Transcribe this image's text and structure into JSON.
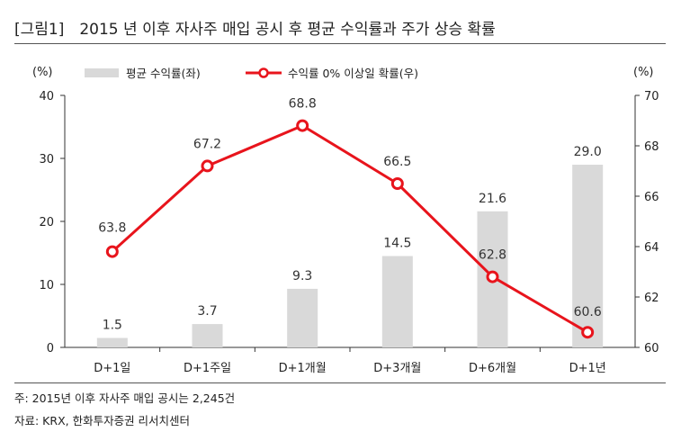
{
  "title": "[그림1]　2015 년 이후 자사주 매입 공시 후 평균 수익률과 주가 상승 확률",
  "footnote": "주: 2015년 이후 자사주 매입 공시는 2,245건",
  "source": "자료: KRX, 한화투자증권 리서치센터",
  "chart_data": {
    "type": "bar",
    "categories": [
      "D+1일",
      "D+1주일",
      "D+1개월",
      "D+3개월",
      "D+6개월",
      "D+1년"
    ],
    "series": [
      {
        "name": "평균 수익률(좌)",
        "type": "bar",
        "axis": "left",
        "values": [
          1.5,
          3.7,
          9.3,
          14.5,
          21.6,
          29.0
        ],
        "labels": [
          "1.5",
          "3.7",
          "9.3",
          "14.5",
          "21.6",
          "29.0"
        ],
        "color": "#d9d9d9"
      },
      {
        "name": "수익률 0% 이상일 확률(우)",
        "type": "line",
        "axis": "right",
        "values": [
          63.8,
          67.2,
          68.8,
          66.5,
          62.8,
          60.6
        ],
        "labels": [
          "63.8",
          "67.2",
          "68.8",
          "66.5",
          "62.8",
          "60.6"
        ],
        "color": "#e8141c"
      }
    ],
    "left_axis": {
      "unit": "(%)",
      "ylim": [
        0,
        40
      ],
      "ticks": [
        "0",
        "10",
        "20",
        "30",
        "40"
      ]
    },
    "right_axis": {
      "unit": "(%)",
      "ylim": [
        60,
        70
      ],
      "ticks": [
        "60",
        "62",
        "64",
        "66",
        "68",
        "70"
      ]
    },
    "legend": "top",
    "grid": false
  }
}
